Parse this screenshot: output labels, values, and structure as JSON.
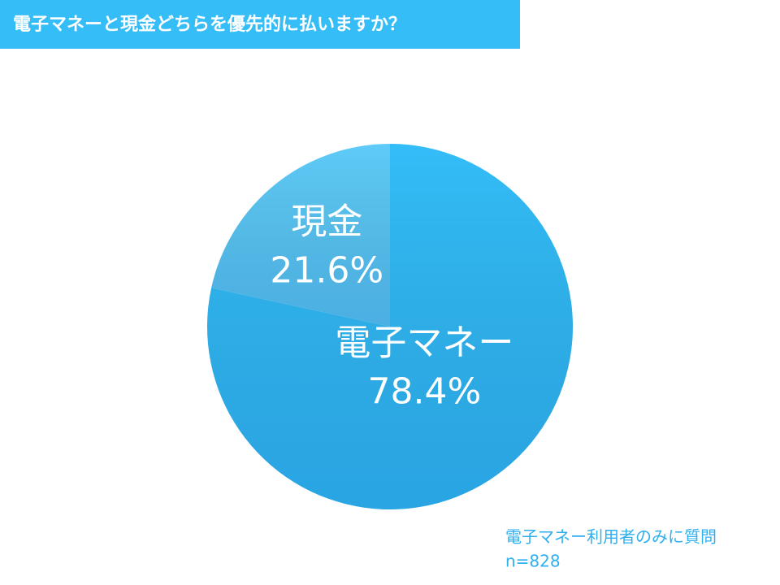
{
  "chart_data": {
    "type": "pie",
    "title": "電子マネーと現金どちらを優先的に払いますか？",
    "categories": [
      "電子マネー",
      "現金"
    ],
    "values": [
      78.4,
      21.6
    ],
    "value_labels": [
      "78.4%",
      "21.6%"
    ],
    "colors": [
      "#33bdf8",
      "#5ecbf8"
    ],
    "notes": [
      "電子マネー利用者のみに質問",
      "n=828"
    ]
  }
}
